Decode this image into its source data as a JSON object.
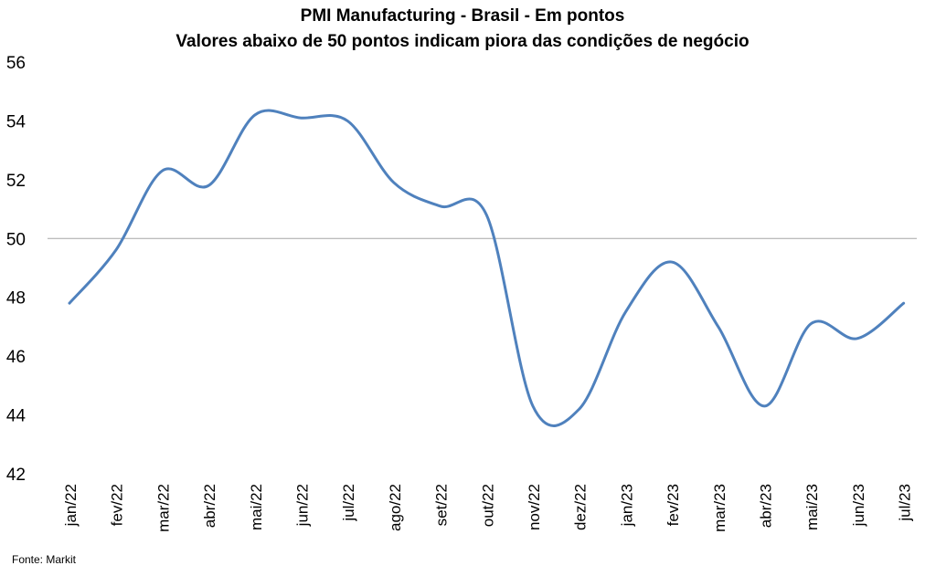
{
  "chart_data": {
    "type": "line",
    "title": "PMI Manufacturing - Brasil - Em pontos",
    "subtitle": "Valores abaixo de 50 pontos indicam piora das condições de negócio",
    "categories": [
      "jan/22",
      "fev/22",
      "mar/22",
      "abr/22",
      "mai/22",
      "jun/22",
      "jul/22",
      "ago/22",
      "set/22",
      "out/22",
      "nov/22",
      "dez/22",
      "jan/23",
      "fev/23",
      "mar/23",
      "abr/23",
      "mai/23",
      "jun/23",
      "jul/23"
    ],
    "series": [
      {
        "values": [
          47.8,
          49.6,
          52.3,
          51.8,
          54.2,
          54.1,
          54.0,
          51.9,
          51.1,
          50.8,
          44.3,
          44.2,
          47.5,
          49.2,
          47.0,
          44.3,
          47.1,
          46.6,
          47.8
        ]
      }
    ],
    "y_ticks": [
      42,
      44,
      46,
      48,
      50,
      52,
      54,
      56
    ],
    "ylim": [
      42,
      56
    ],
    "reference_line": 50,
    "grid": false,
    "legend": "none",
    "line_color": "#4f81bd",
    "reference_color": "#a6a6a6"
  },
  "source": "Fonte: Markit"
}
